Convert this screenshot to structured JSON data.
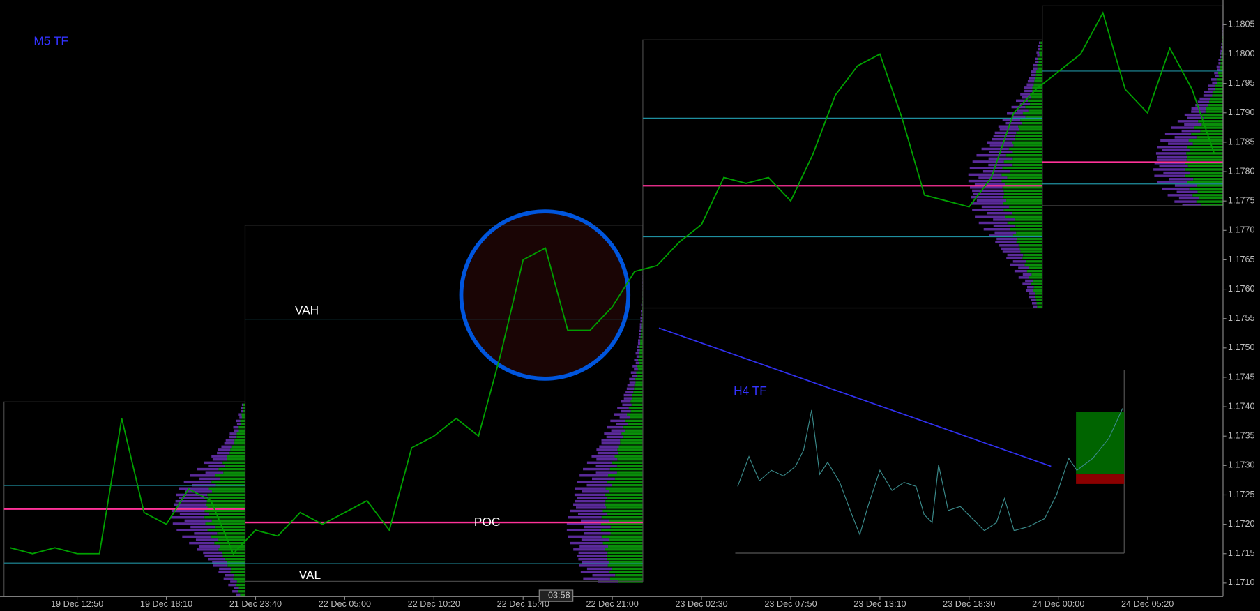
{
  "chart_data": {
    "type": "line",
    "categories": [
      null,
      null,
      null,
      "19 Dec 12:50",
      null,
      null,
      null,
      "19 Dec 18:10",
      null,
      null,
      null,
      "21 Dec 23:40",
      null,
      null,
      null,
      "22 Dec 05:00",
      null,
      null,
      null,
      "22 Dec 10:20",
      null,
      null,
      null,
      "22 Dec 15:40",
      null,
      null,
      null,
      "22 Dec 21:00",
      null,
      null,
      null,
      "23 Dec 02:30",
      null,
      null,
      null,
      "23 Dec 07:50",
      null,
      null,
      null,
      "23 Dec 13:10",
      null,
      null,
      null,
      "23 Dec 18:30",
      null,
      null,
      null,
      "24 Dec 00:00",
      null,
      null,
      null,
      "24 Dec 05:20",
      null,
      null,
      null
    ],
    "series": [
      {
        "color": "#00a000",
        "values": [
          1.1716,
          1.1715,
          1.1716,
          1.1715,
          1.1715,
          1.1738,
          1.1722,
          1.172,
          1.1726,
          1.1724,
          1.1715,
          1.1719,
          1.1718,
          1.1722,
          1.172,
          1.1722,
          1.1724,
          1.1719,
          1.1733,
          1.1735,
          1.1738,
          1.1735,
          1.1749,
          1.1765,
          1.1767,
          1.1753,
          1.1753,
          1.1757,
          1.1763,
          1.1764,
          1.1768,
          1.1771,
          1.1779,
          1.1778,
          1.1779,
          1.1775,
          1.1783,
          1.1793,
          1.1798,
          1.18,
          1.1789,
          1.1776,
          1.1775,
          1.1774,
          1.1779,
          1.179,
          1.1794,
          1.1797,
          1.18,
          1.1807,
          1.1794,
          1.179,
          1.1801,
          1.1794,
          1.1783
        ]
      }
    ],
    "ylim": [
      1.17077,
      1.18092
    ],
    "yticks": [
      {
        "value": 1.171,
        "label": "1.1710"
      },
      {
        "value": 1.1715,
        "label": "1.1715"
      },
      {
        "value": 1.172,
        "label": "1.1720"
      },
      {
        "value": 1.1725,
        "label": "1.1725"
      },
      {
        "value": 1.173,
        "label": "1.1730"
      },
      {
        "value": 1.1735,
        "label": "1.1735"
      },
      {
        "value": 1.174,
        "label": "1.1740"
      },
      {
        "value": 1.1745,
        "label": "1.1745"
      },
      {
        "value": 1.175,
        "label": "1.1750"
      },
      {
        "value": 1.1755,
        "label": "1.1755"
      },
      {
        "value": 1.176,
        "label": "1.1760"
      },
      {
        "value": 1.1765,
        "label": "1.1765"
      },
      {
        "value": 1.177,
        "label": "1.1770"
      },
      {
        "value": 1.1775,
        "label": "1.1775"
      },
      {
        "value": 1.178,
        "label": "1.1780"
      },
      {
        "value": 1.1785,
        "label": "1.1785"
      },
      {
        "value": 1.179,
        "label": "1.1790"
      },
      {
        "value": 1.1795,
        "label": "1.1795"
      },
      {
        "value": 1.18,
        "label": "1.1800"
      },
      {
        "value": 1.1805,
        "label": "1.1805"
      }
    ],
    "sessions": [
      {
        "high": 1.17408,
        "low": 1.17077,
        "vah": 1.17266,
        "poc": 1.17226,
        "val": 1.17134
      },
      {
        "high": 1.17709,
        "low": 1.17103,
        "vah": 1.17549,
        "poc": 1.17203,
        "val": 1.17133
      },
      {
        "high": 1.18024,
        "low": 1.17568,
        "vah": 1.17891,
        "poc": 1.17776,
        "val": 1.17689
      },
      {
        "high": 1.18082,
        "low": 1.17742,
        "vah": 1.17971,
        "poc": 1.17816,
        "val": 1.17779
      }
    ],
    "poc_color": "#ff3399",
    "va_color": "#1f8f9f",
    "annotations": [
      "M5 TF",
      "H4 TF",
      "VAH",
      "POC",
      "VAL",
      "03:58"
    ]
  }
}
